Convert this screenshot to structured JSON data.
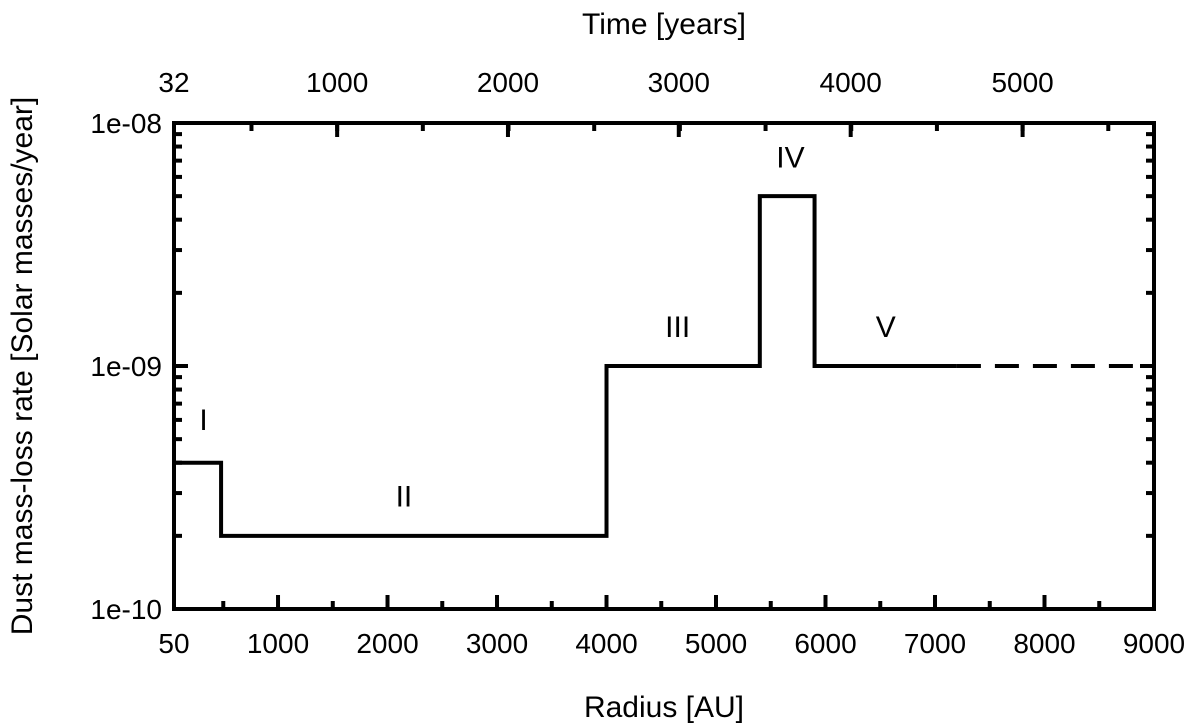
{
  "chart_data": {
    "type": "line",
    "xlabel": "Radius [AU]",
    "ylabel": "Dust mass-loss rate [Solar masses/year]",
    "x2label": "Time [years]",
    "xlim": [
      50,
      9000
    ],
    "ylim": [
      1e-10,
      1e-08
    ],
    "yscale": "log",
    "grid": false,
    "legend": "none",
    "line_color": "#000000",
    "x_ticks": [
      {
        "value": 50,
        "label": "50"
      },
      {
        "value": 1000,
        "label": "1000"
      },
      {
        "value": 2000,
        "label": "2000"
      },
      {
        "value": 3000,
        "label": "3000"
      },
      {
        "value": 4000,
        "label": "4000"
      },
      {
        "value": 5000,
        "label": "5000"
      },
      {
        "value": 6000,
        "label": "6000"
      },
      {
        "value": 7000,
        "label": "7000"
      },
      {
        "value": 8000,
        "label": "8000"
      },
      {
        "value": 9000,
        "label": "9000"
      }
    ],
    "x2_ticks": [
      {
        "radius": 50,
        "label": "32"
      },
      {
        "radius": 1540,
        "label": "1000"
      },
      {
        "radius": 3100,
        "label": "2000"
      },
      {
        "radius": 4660,
        "label": "3000"
      },
      {
        "radius": 6230,
        "label": "4000"
      },
      {
        "radius": 7800,
        "label": "5000"
      }
    ],
    "y_ticks": [
      {
        "value": 1e-10,
        "label": "1e-10"
      },
      {
        "value": 1e-09,
        "label": "1e-09"
      },
      {
        "value": 1e-08,
        "label": "1e-08"
      }
    ],
    "series": [
      {
        "style": "solid",
        "x": [
          50,
          480,
          480,
          4000,
          4000,
          5400,
          5400,
          5900,
          5900,
          7200
        ],
        "y": [
          4e-10,
          4e-10,
          2e-10,
          2e-10,
          1e-09,
          1e-09,
          5e-09,
          5e-09,
          1e-09,
          1e-09
        ]
      },
      {
        "style": "dashed",
        "x": [
          7200,
          9000
        ],
        "y": [
          1e-09,
          1e-09
        ]
      }
    ],
    "annotations": [
      {
        "text": "I",
        "x": 320,
        "y": 6e-10
      },
      {
        "text": "II",
        "x": 2150,
        "y": 2.9e-10
      },
      {
        "text": "III",
        "x": 4650,
        "y": 1.45e-09
      },
      {
        "text": "IV",
        "x": 5680,
        "y": 7.2e-09
      },
      {
        "text": "V",
        "x": 6550,
        "y": 1.45e-09
      }
    ]
  }
}
